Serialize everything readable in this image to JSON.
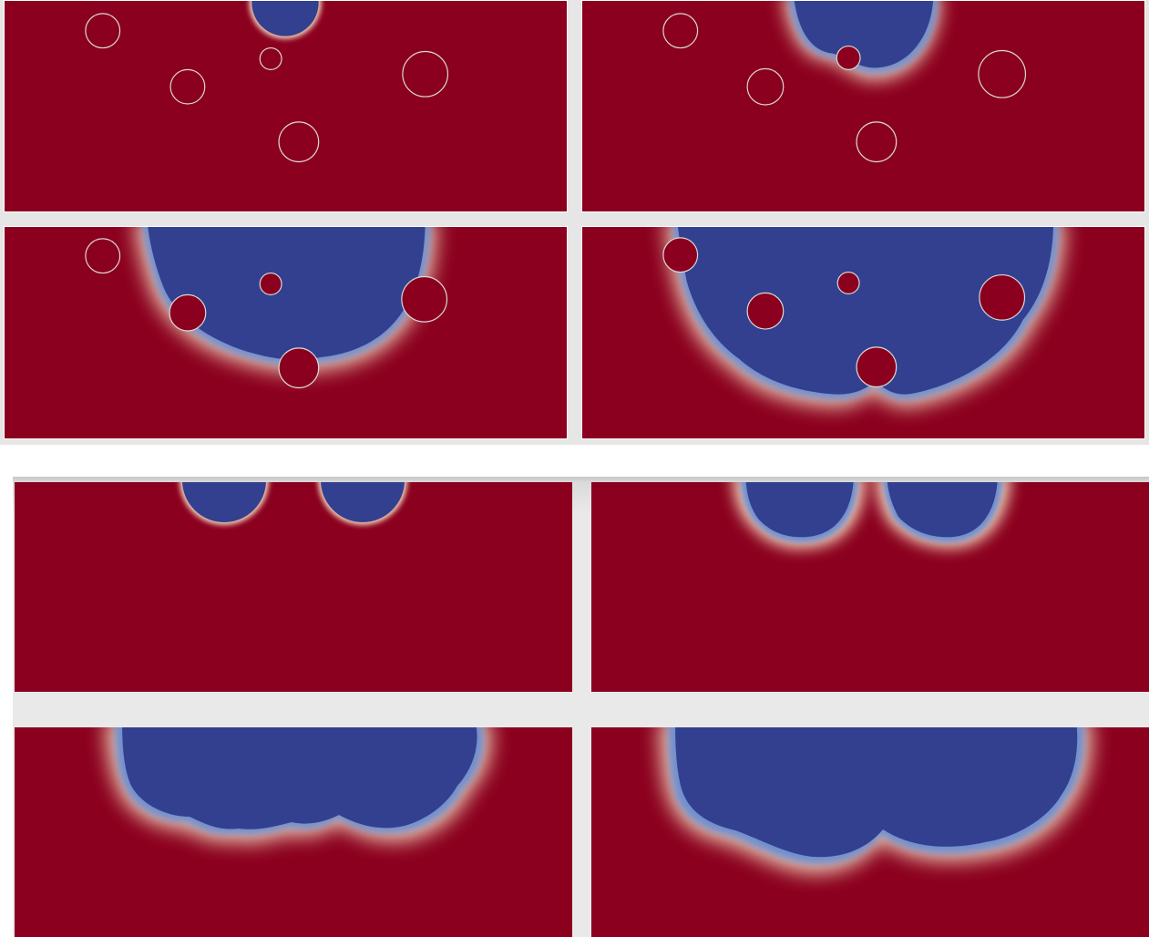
{
  "colors": {
    "matrix": "#8b001e",
    "phase": "#32408f",
    "front_mid": "#6f8fcf",
    "front_warm": "#f2d2b6",
    "front_orange": "#d9674a",
    "inclusion_outline": "#d9d9d9",
    "separator": "#e6e6e6"
  }
}
